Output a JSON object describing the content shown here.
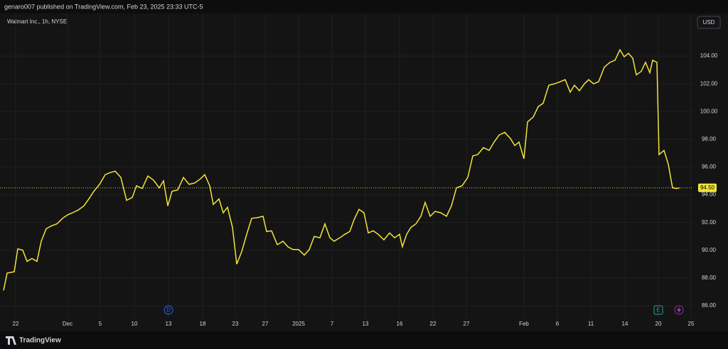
{
  "header": {
    "text": "genaro007 published on TradingView.com, Feb 23, 2025 23:33 UTC-5",
    "brand": "TradingView"
  },
  "chart_data": {
    "type": "line",
    "title": "Walmart Inc., 1h, NYSE",
    "currency": "USD",
    "color": "#f2e43a",
    "grid": true,
    "x": [
      5,
      10,
      20,
      25,
      32,
      38,
      45,
      52,
      58,
      65,
      72,
      80,
      88,
      95,
      102,
      110,
      118,
      125,
      132,
      140,
      148,
      155,
      162,
      170,
      178,
      186,
      192,
      200,
      208,
      216,
      224,
      230,
      236,
      242,
      250,
      258,
      266,
      274,
      282,
      288,
      295,
      300,
      308,
      314,
      320,
      327,
      333,
      340,
      347,
      354,
      362,
      370,
      375,
      382,
      390,
      398,
      405,
      412,
      420,
      428,
      435,
      442,
      450,
      457,
      464,
      470,
      478,
      485,
      492,
      498,
      505,
      512,
      518,
      525,
      532,
      540,
      548,
      555,
      562,
      566,
      572,
      578,
      585,
      592,
      598,
      605,
      612,
      620,
      628,
      635,
      642,
      650,
      658,
      665,
      672,
      680,
      688,
      695,
      702,
      710,
      718,
      724,
      730,
      737,
      742,
      750,
      757,
      764,
      772,
      780,
      788,
      795,
      802,
      808,
      815,
      822,
      828,
      835,
      842,
      850,
      858,
      865,
      872,
      878,
      884,
      890,
      895,
      902,
      908,
      914,
      918,
      924,
      927,
      934,
      940,
      946,
      952,
      956
    ],
    "values": [
      87.1,
      88.35,
      88.45,
      90.1,
      90.0,
      89.2,
      89.4,
      89.2,
      90.65,
      91.55,
      91.75,
      91.9,
      92.3,
      92.55,
      92.7,
      92.9,
      93.2,
      93.7,
      94.25,
      94.75,
      95.45,
      95.6,
      95.7,
      95.25,
      93.6,
      93.8,
      94.65,
      94.45,
      95.35,
      95.05,
      94.5,
      95.0,
      93.2,
      94.25,
      94.35,
      95.25,
      94.75,
      94.85,
      95.15,
      95.45,
      94.65,
      93.3,
      93.7,
      92.7,
      93.1,
      91.65,
      89.0,
      89.9,
      91.15,
      92.3,
      92.35,
      92.45,
      91.35,
      91.4,
      90.4,
      90.65,
      90.25,
      90.05,
      90.05,
      89.65,
      90.05,
      91.0,
      90.9,
      91.9,
      90.9,
      90.65,
      90.9,
      91.15,
      91.35,
      92.2,
      92.95,
      92.7,
      91.25,
      91.4,
      91.15,
      90.75,
      91.25,
      90.9,
      91.15,
      90.25,
      91.15,
      91.65,
      91.9,
      92.45,
      93.45,
      92.45,
      92.8,
      92.7,
      92.45,
      93.2,
      94.5,
      94.65,
      95.25,
      96.8,
      96.9,
      97.4,
      97.2,
      97.8,
      98.3,
      98.5,
      98.05,
      97.55,
      97.8,
      96.6,
      99.25,
      99.6,
      100.35,
      100.6,
      101.9,
      102.0,
      102.15,
      102.3,
      101.4,
      101.9,
      101.5,
      102.0,
      102.3,
      102.0,
      102.15,
      103.2,
      103.55,
      103.7,
      104.45,
      103.95,
      104.2,
      103.85,
      102.65,
      102.9,
      103.55,
      102.8,
      103.7,
      103.55,
      96.9,
      97.2,
      96.2,
      94.5,
      94.45,
      94.5
    ],
    "xlim": [
      0,
      975
    ],
    "xticks": [
      {
        "value": 22,
        "label": "22"
      },
      {
        "value": 95,
        "label": "Dec"
      },
      {
        "value": 141,
        "label": "5"
      },
      {
        "value": 189,
        "label": "10"
      },
      {
        "value": 237,
        "label": "13"
      },
      {
        "value": 285,
        "label": "18"
      },
      {
        "value": 331,
        "label": "23"
      },
      {
        "value": 373,
        "label": "27"
      },
      {
        "value": 420,
        "label": "2025"
      },
      {
        "value": 467,
        "label": "7"
      },
      {
        "value": 514,
        "label": "13"
      },
      {
        "value": 562,
        "label": "16"
      },
      {
        "value": 609,
        "label": "22"
      },
      {
        "value": 656,
        "label": "27"
      },
      {
        "value": 737,
        "label": "Feb"
      },
      {
        "value": 784,
        "label": "6"
      },
      {
        "value": 831,
        "label": "11"
      },
      {
        "value": 879,
        "label": "14"
      },
      {
        "value": 926,
        "label": "20"
      },
      {
        "value": 972,
        "label": "25"
      }
    ],
    "ylim": [
      85.13,
      107.02
    ],
    "yticks": [
      {
        "value": 86,
        "label": "86.00"
      },
      {
        "value": 88,
        "label": "88.00"
      },
      {
        "value": 90,
        "label": "90.00"
      },
      {
        "value": 92,
        "label": "92.00"
      },
      {
        "value": 94,
        "label": "94.00"
      },
      {
        "value": 96,
        "label": "96.00"
      },
      {
        "value": 98,
        "label": "98.00"
      },
      {
        "value": 100,
        "label": "100.00"
      },
      {
        "value": 102,
        "label": "102.00"
      },
      {
        "value": 104,
        "label": "104.00"
      }
    ],
    "price_line": {
      "value": 94.5,
      "label": "94.50"
    },
    "events": [
      {
        "x": 237,
        "label": "D",
        "color": "#2962ff"
      },
      {
        "x": 926,
        "label": "E",
        "color": "#26a69a"
      }
    ]
  }
}
